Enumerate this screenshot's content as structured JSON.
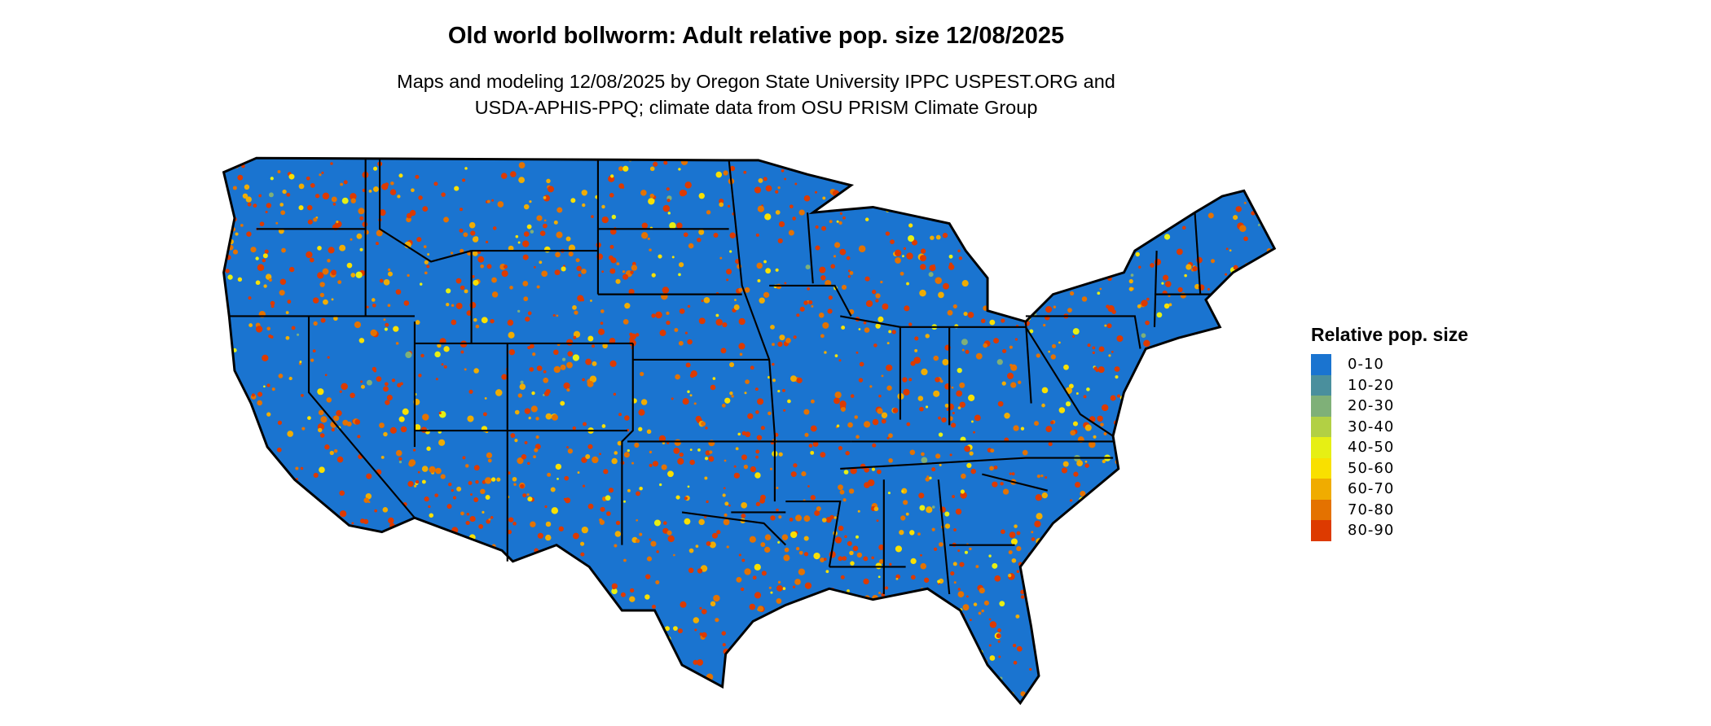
{
  "title": "Old world bollworm: Adult relative pop. size 12/08/2025",
  "subtitle_lines": [
    "Maps and modeling 12/08/2025 by Oregon State University IPPC USPEST.ORG and",
    "USDA-APHIS-PPQ; climate data from OSU PRISM Climate Group"
  ],
  "legend": {
    "title": "Relative pop. size",
    "items": [
      {
        "label": "0-10",
        "color": "#1a74d0"
      },
      {
        "label": "10-20",
        "color": "#4a8f9d"
      },
      {
        "label": "20-30",
        "color": "#7fb078"
      },
      {
        "label": "30-40",
        "color": "#b2d044"
      },
      {
        "label": "40-50",
        "color": "#e6ef14"
      },
      {
        "label": "50-60",
        "color": "#f9e000"
      },
      {
        "label": "60-70",
        "color": "#f0ac00"
      },
      {
        "label": "70-80",
        "color": "#e47200"
      },
      {
        "label": "80-90",
        "color": "#dd3a00"
      }
    ]
  },
  "map": {
    "region": "Contiguous United States",
    "base_color": "#1a74d0",
    "boundary_color": "#000000"
  }
}
